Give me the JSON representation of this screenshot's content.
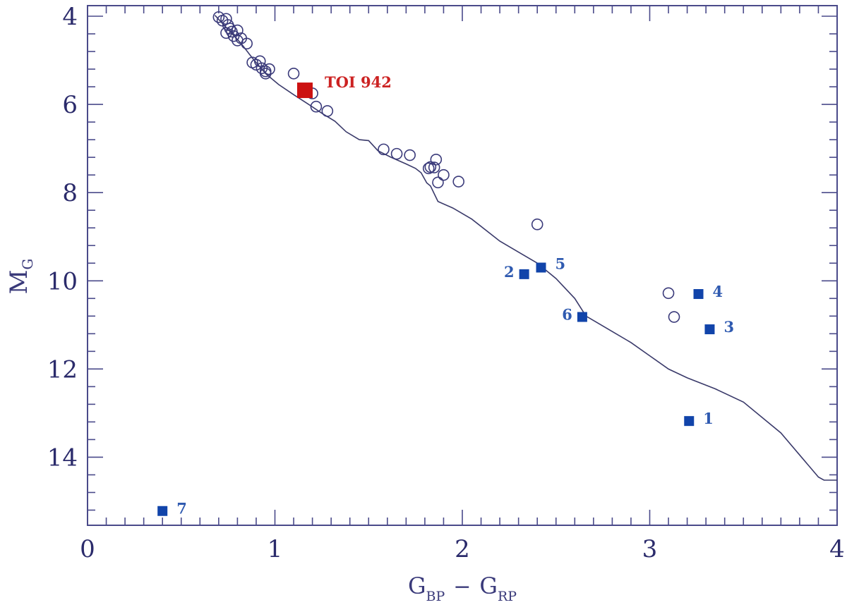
{
  "chart_data": {
    "type": "scatter",
    "xlabel": {
      "main": "G",
      "sub1": "BP",
      "op": "−",
      "main2": "G",
      "sub2": "RP"
    },
    "ylabel": {
      "main": "M",
      "sub": "G"
    },
    "xlim": [
      0,
      4
    ],
    "ylim": [
      15.4,
      4
    ],
    "x_ticks": [
      0,
      1,
      2,
      3,
      4
    ],
    "y_ticks": [
      4,
      6,
      8,
      10,
      12,
      14
    ],
    "colors": {
      "axis": "#4a4a8a",
      "tick_label": "#2b2b6b",
      "highlight": "#cc1111",
      "highlight_label": "#cc2222",
      "numbered": "#1144aa",
      "numbered_label": "#2f5ab0",
      "open": "#3a3a7a",
      "curve": "#3a3a6a"
    },
    "highlight": {
      "label": "TOI 942",
      "x": 1.16,
      "y": 5.68
    },
    "numbered_points": [
      {
        "label": "1",
        "x": 3.21,
        "y": 13.18
      },
      {
        "label": "2",
        "x": 2.33,
        "y": 9.85
      },
      {
        "label": "3",
        "x": 3.32,
        "y": 11.1
      },
      {
        "label": "4",
        "x": 3.26,
        "y": 10.3
      },
      {
        "label": "5",
        "x": 2.42,
        "y": 9.7
      },
      {
        "label": "6",
        "x": 2.64,
        "y": 10.82
      },
      {
        "label": "7",
        "x": 0.4,
        "y": 15.22
      }
    ],
    "open_points": [
      [
        0.7,
        4.02
      ],
      [
        0.72,
        4.1
      ],
      [
        0.74,
        4.06
      ],
      [
        0.75,
        4.2
      ],
      [
        0.76,
        4.28
      ],
      [
        0.74,
        4.38
      ],
      [
        0.77,
        4.35
      ],
      [
        0.78,
        4.45
      ],
      [
        0.8,
        4.32
      ],
      [
        0.8,
        4.55
      ],
      [
        0.82,
        4.5
      ],
      [
        0.85,
        4.62
      ],
      [
        0.88,
        5.05
      ],
      [
        0.9,
        5.1
      ],
      [
        0.92,
        5.02
      ],
      [
        0.93,
        5.18
      ],
      [
        0.95,
        5.25
      ],
      [
        0.95,
        5.3
      ],
      [
        0.97,
        5.2
      ],
      [
        1.1,
        5.3
      ],
      [
        1.2,
        5.75
      ],
      [
        1.22,
        6.05
      ],
      [
        1.28,
        6.15
      ],
      [
        1.58,
        7.02
      ],
      [
        1.65,
        7.12
      ],
      [
        1.72,
        7.15
      ],
      [
        1.82,
        7.45
      ],
      [
        1.85,
        7.43
      ],
      [
        1.83,
        7.42
      ],
      [
        1.86,
        7.25
      ],
      [
        1.9,
        7.6
      ],
      [
        1.87,
        7.77
      ],
      [
        1.98,
        7.75
      ],
      [
        2.4,
        8.72
      ],
      [
        3.1,
        10.28
      ],
      [
        3.13,
        10.82
      ]
    ],
    "curve": [
      [
        0.68,
        3.98
      ],
      [
        0.75,
        4.3
      ],
      [
        0.82,
        4.62
      ],
      [
        0.88,
        4.95
      ],
      [
        0.95,
        5.3
      ],
      [
        1.02,
        5.55
      ],
      [
        1.1,
        5.78
      ],
      [
        1.18,
        6.0
      ],
      [
        1.25,
        6.2
      ],
      [
        1.32,
        6.38
      ],
      [
        1.38,
        6.62
      ],
      [
        1.45,
        6.8
      ],
      [
        1.5,
        6.82
      ],
      [
        1.55,
        7.05
      ],
      [
        1.62,
        7.2
      ],
      [
        1.7,
        7.35
      ],
      [
        1.75,
        7.45
      ],
      [
        1.78,
        7.55
      ],
      [
        1.81,
        7.78
      ],
      [
        1.83,
        7.85
      ],
      [
        1.87,
        8.2
      ],
      [
        1.95,
        8.35
      ],
      [
        2.05,
        8.6
      ],
      [
        2.2,
        9.1
      ],
      [
        2.3,
        9.35
      ],
      [
        2.4,
        9.6
      ],
      [
        2.5,
        9.95
      ],
      [
        2.6,
        10.4
      ],
      [
        2.66,
        10.8
      ],
      [
        2.72,
        10.95
      ],
      [
        2.8,
        11.15
      ],
      [
        2.9,
        11.4
      ],
      [
        3.0,
        11.7
      ],
      [
        3.1,
        12.0
      ],
      [
        3.2,
        12.2
      ],
      [
        3.35,
        12.45
      ],
      [
        3.5,
        12.75
      ],
      [
        3.7,
        13.45
      ],
      [
        3.8,
        13.95
      ],
      [
        3.9,
        14.45
      ],
      [
        3.93,
        14.52
      ],
      [
        4.0,
        14.52
      ]
    ]
  }
}
